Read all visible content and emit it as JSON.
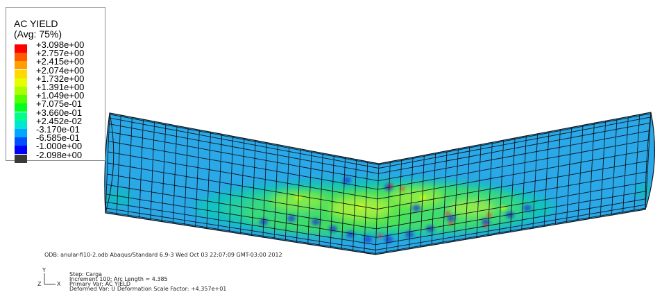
{
  "legend": {
    "title": "AC YIELD",
    "subtitle": "(Avg: 75%)",
    "entries": [
      {
        "label": "+3.098e+00",
        "color": "#ff0000"
      },
      {
        "label": "+2.757e+00",
        "color": "#ff5a00"
      },
      {
        "label": "+2.415e+00",
        "color": "#ffa000"
      },
      {
        "label": "+2.074e+00",
        "color": "#ffd900"
      },
      {
        "label": "+1.732e+00",
        "color": "#e5ff00"
      },
      {
        "label": "+1.391e+00",
        "color": "#a7ff00"
      },
      {
        "label": "+1.049e+00",
        "color": "#55ff00"
      },
      {
        "label": "+7.075e-01",
        "color": "#00ff20"
      },
      {
        "label": "+3.660e-01",
        "color": "#00ff8a"
      },
      {
        "label": "+2.452e-02",
        "color": "#00e6d2"
      },
      {
        "label": "-3.170e-01",
        "color": "#00a6ff"
      },
      {
        "label": "-6.585e-01",
        "color": "#0050ff"
      },
      {
        "label": "-1.000e+00",
        "color": "#0000ff"
      },
      {
        "label": "-2.098e+00",
        "color": "#3a3a3a"
      }
    ]
  },
  "info": {
    "odb_line": "ODB: anular-fi10-2.odb    Abaqus/Standard 6.9-3    Wed Oct 03 22:07:09 GMT-03:00 2012",
    "step_line": "Step: Carga",
    "increment_line": "Increment    100: Arc Length =    4.385",
    "primary_line": "Primary Var: AC YIELD",
    "deformed_line": "Deformed Var: U   Deformation Scale Factor: +4.357e+01"
  },
  "triad": {
    "y": "Y",
    "z": "Z",
    "x": "X"
  },
  "colors": {
    "pipe_base": "#2aa8e8",
    "mesh_line": "#101820"
  }
}
